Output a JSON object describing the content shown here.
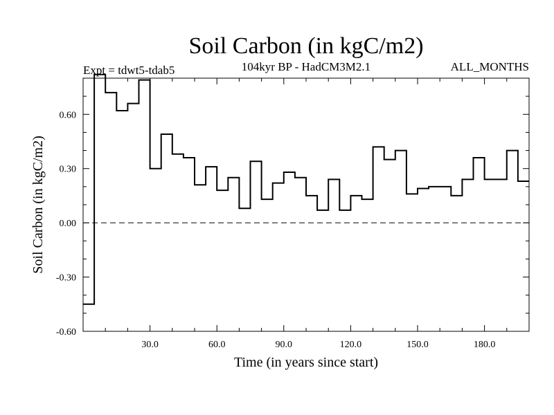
{
  "chart_data": {
    "type": "line",
    "title": "Soil Carbon (in kgC/m2)",
    "subtitle_left": "Expt = tdwt5-tdab5",
    "subtitle_center": "104kyr BP - HadCM3M2.1",
    "subtitle_right": "ALL_MONTHS",
    "xlabel": "Time (in years since start)",
    "ylabel": "Soil Carbon (in kgC/m2)",
    "xlim": [
      0,
      200
    ],
    "ylim": [
      -0.6,
      0.8
    ],
    "x_ticks": [
      30,
      60,
      90,
      120,
      150,
      180
    ],
    "x_tick_labels": [
      "30.0",
      "60.0",
      "90.0",
      "120.0",
      "150.0",
      "180.0"
    ],
    "x_minor_step": 10,
    "y_ticks": [
      -0.6,
      -0.3,
      0.0,
      0.3,
      0.6
    ],
    "y_tick_labels": [
      "-0.60",
      "-0.30",
      "0.00",
      "0.30",
      "0.60"
    ],
    "y_minor_step": 0.1,
    "zero_line": "dashed",
    "step_width": 5,
    "series": [
      {
        "name": "Soil Carbon",
        "style": "step",
        "x": [
          0,
          5,
          10,
          15,
          20,
          25,
          30,
          35,
          40,
          45,
          50,
          55,
          60,
          65,
          70,
          75,
          80,
          85,
          90,
          95,
          100,
          105,
          110,
          115,
          120,
          125,
          130,
          135,
          140,
          145,
          150,
          155,
          160,
          165,
          170,
          175,
          180,
          185,
          190,
          195
        ],
        "values": [
          -0.45,
          0.82,
          0.72,
          0.62,
          0.66,
          0.79,
          0.3,
          0.49,
          0.38,
          0.36,
          0.21,
          0.31,
          0.18,
          0.25,
          0.08,
          0.34,
          0.13,
          0.22,
          0.28,
          0.25,
          0.15,
          0.07,
          0.24,
          0.07,
          0.15,
          0.13,
          0.42,
          0.35,
          0.4,
          0.16,
          0.19,
          0.2,
          0.2,
          0.15,
          0.24,
          0.36,
          0.24,
          0.24,
          0.4,
          0.23
        ]
      }
    ]
  }
}
